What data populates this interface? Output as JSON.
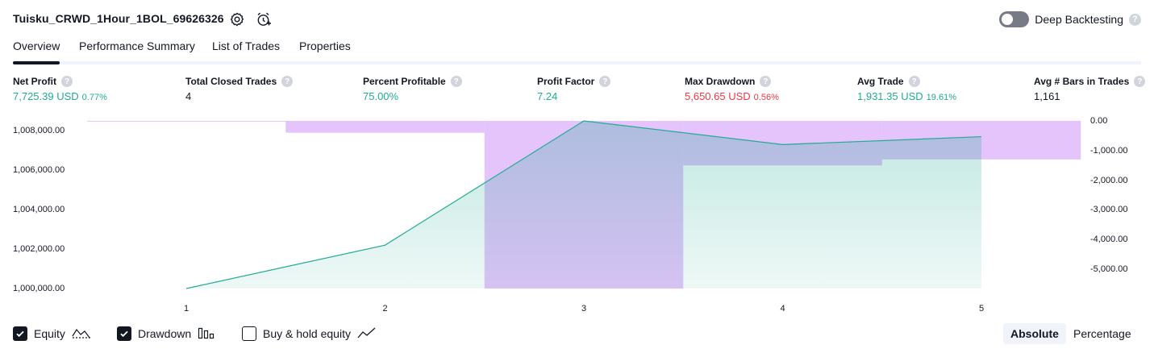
{
  "header": {
    "strategy_title": "Tuisku_CRWD_1Hour_1BOL_69626326",
    "deep_backtesting_label": "Deep Backtesting",
    "deep_backtesting_enabled": false,
    "settings_icon": "settings-gear-icon",
    "alert_icon": "add-alert-clock-icon",
    "help_icon_glyph": "?"
  },
  "tabs": [
    {
      "label": "Overview",
      "active": true
    },
    {
      "label": "Performance Summary",
      "active": false
    },
    {
      "label": "List of Trades",
      "active": false
    },
    {
      "label": "Properties",
      "active": false
    }
  ],
  "metrics": [
    {
      "label": "Net Profit",
      "value": "7,725.39 USD",
      "pct": "0.77%",
      "tone": "green"
    },
    {
      "label": "Total Closed Trades",
      "value": "4",
      "pct": "",
      "tone": "neutral"
    },
    {
      "label": "Percent Profitable",
      "value": "75.00%",
      "pct": "",
      "tone": "green"
    },
    {
      "label": "Profit Factor",
      "value": "7.24",
      "pct": "",
      "tone": "green"
    },
    {
      "label": "Max Drawdown",
      "value": "5,650.65 USD",
      "pct": "0.56%",
      "tone": "red"
    },
    {
      "label": "Avg Trade",
      "value": "1,931.35 USD",
      "pct": "19.61%",
      "tone": "green"
    },
    {
      "label": "Avg # Bars in Trades",
      "value": "1,161",
      "pct": "",
      "tone": "neutral"
    }
  ],
  "chart_data": {
    "type": "area",
    "x": [
      1,
      2,
      3,
      4,
      5
    ],
    "left_axis": {
      "ticks": [
        "1,008,000.00",
        "1,006,000.00",
        "1,004,000.00",
        "1,002,000.00",
        "1,000,000.00"
      ],
      "tick_values": [
        1008000,
        1006000,
        1004000,
        1002000,
        1000000
      ],
      "range": [
        1000000,
        1008500
      ]
    },
    "right_axis": {
      "ticks": [
        "0.00",
        "-1,000.00",
        "-2,000.00",
        "-3,000.00",
        "-4,000.00",
        "-5,000.00"
      ],
      "tick_values": [
        0,
        -1000,
        -2000,
        -3000,
        -4000,
        -5000
      ],
      "range": [
        -5650.65,
        0
      ]
    },
    "series": [
      {
        "kind": "equity",
        "values": [
          1000000,
          1002200,
          1008500,
          1007300,
          1007700
        ]
      },
      {
        "kind": "drawdown",
        "values": [
          0,
          -400,
          -5650.65,
          -1500,
          -1300
        ]
      }
    ],
    "colors": {
      "equity_line": "#22ab94",
      "drawdown_fill": "#ce93f8",
      "equity_fill": "#22ab94"
    }
  },
  "legend": [
    {
      "label": "Equity",
      "checked": true,
      "icon": "equity-line-icon"
    },
    {
      "label": "Drawdown",
      "checked": true,
      "icon": "drawdown-bars-icon"
    },
    {
      "label": "Buy & hold equity",
      "checked": false,
      "icon": "buy-hold-line-icon"
    }
  ],
  "mode": {
    "absolute_label": "Absolute",
    "percentage_label": "Percentage",
    "active": "Absolute"
  }
}
